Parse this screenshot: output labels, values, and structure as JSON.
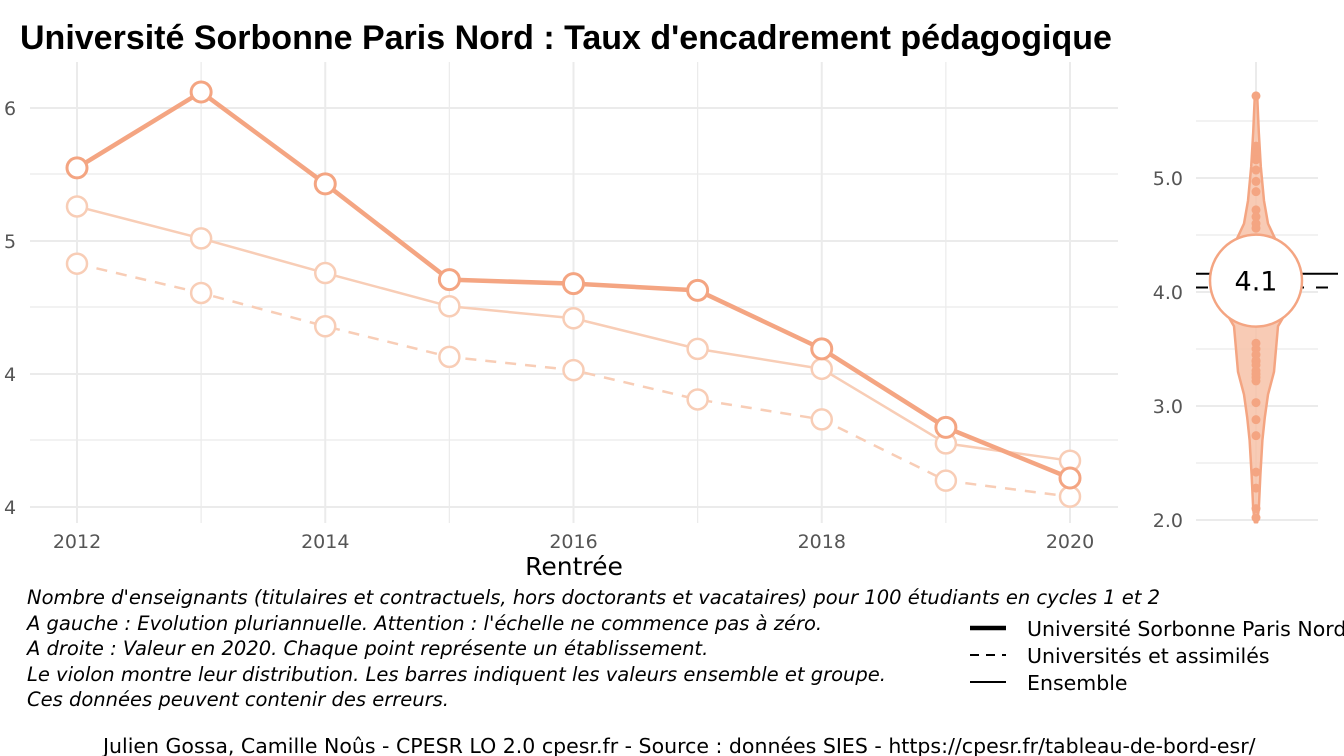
{
  "title": "Université Sorbonne Paris Nord  :  Taux d'encadrement pédagogique",
  "colors": {
    "main": "#F4A582",
    "light": "#F8CDB6",
    "violin_fill": "#F7C2A8",
    "grid": "#EBEBEB",
    "tick": "#555555"
  },
  "chart_data": [
    {
      "type": "line",
      "xlabel": "Rentrée",
      "ylabel": "",
      "x": [
        2012,
        2013,
        2014,
        2015,
        2016,
        2017,
        2018,
        2019,
        2020
      ],
      "x_tick_labels": [
        "2012",
        "2014",
        "2016",
        "2018",
        "2020"
      ],
      "y_tick_labels": [
        "6",
        "5",
        "4",
        "4"
      ],
      "series": [
        {
          "name": "Université Sorbonne Paris Nord",
          "style": "solid-thick",
          "values": [
            5.55,
            6.12,
            5.43,
            4.71,
            4.68,
            4.63,
            4.19,
            3.6,
            3.22
          ]
        },
        {
          "name": "Ensemble",
          "style": "solid-thin",
          "values": [
            5.26,
            5.02,
            4.76,
            4.51,
            4.42,
            4.19,
            4.04,
            3.48,
            3.35
          ]
        },
        {
          "name": "Universités et assimilés",
          "style": "dashed",
          "values": [
            4.83,
            4.61,
            4.36,
            4.13,
            4.03,
            3.81,
            3.66,
            3.2,
            3.08
          ]
        }
      ]
    },
    {
      "type": "violin",
      "y_ticks": [
        2.0,
        3.0,
        4.0,
        5.0
      ],
      "y_tick_labels": [
        "2.0",
        "3.0",
        "4.0",
        "5.0"
      ],
      "ylim": [
        1.98,
        5.7
      ],
      "value": 4.1,
      "value_label": "4.1",
      "reference_lines": [
        {
          "name": "Ensemble",
          "value": 4.16,
          "style": "solid"
        },
        {
          "name": "Universités et assimilés",
          "value": 4.04,
          "style": "dashed"
        }
      ],
      "points": [
        5.72,
        5.28,
        5.22,
        5.16,
        5.07,
        4.97,
        4.88,
        4.72,
        4.66,
        4.6,
        4.56,
        4.1,
        4.06,
        4.02,
        3.98,
        3.55,
        3.5,
        3.45,
        3.4,
        3.39,
        3.36,
        3.31,
        3.28,
        3.25,
        3.22,
        3.03,
        2.88,
        2.74,
        2.42,
        2.28,
        2.1,
        2.02
      ],
      "density": [
        [
          5.72,
          0.03
        ],
        [
          5.4,
          0.07
        ],
        [
          5.1,
          0.12
        ],
        [
          4.8,
          0.2
        ],
        [
          4.6,
          0.3
        ],
        [
          4.45,
          0.5
        ],
        [
          4.3,
          0.8
        ],
        [
          4.15,
          0.95
        ],
        [
          4.0,
          1.0
        ],
        [
          3.85,
          0.8
        ],
        [
          3.7,
          0.55
        ],
        [
          3.5,
          0.5
        ],
        [
          3.3,
          0.45
        ],
        [
          3.1,
          0.3
        ],
        [
          2.9,
          0.22
        ],
        [
          2.7,
          0.16
        ],
        [
          2.4,
          0.11
        ],
        [
          2.1,
          0.07
        ],
        [
          1.98,
          0.03
        ]
      ]
    }
  ],
  "notes": [
    "Nombre d'enseignants (titulaires et contractuels, hors doctorants et vacataires) pour 100 étudiants en cycles 1 et 2",
    "A gauche : Evolution pluriannuelle. Attention : l'échelle ne commence pas à zéro.",
    "A droite : Valeur en 2020. Chaque point représente un établissement.",
    "Le violon montre leur distribution. Les barres indiquent les valeurs ensemble et groupe.",
    "Ces données peuvent contenir des erreurs."
  ],
  "legend": [
    {
      "label": "Université Sorbonne Paris Nord",
      "style": "thick"
    },
    {
      "label": "Universités et assimilés",
      "style": "dashed"
    },
    {
      "label": "Ensemble",
      "style": "solid"
    }
  ],
  "caption": "Julien Gossa, Camille Noûs - CPESR LO 2.0 cpesr.fr - Source : données SIES - https://cpesr.fr/tableau-de-bord-esr/"
}
